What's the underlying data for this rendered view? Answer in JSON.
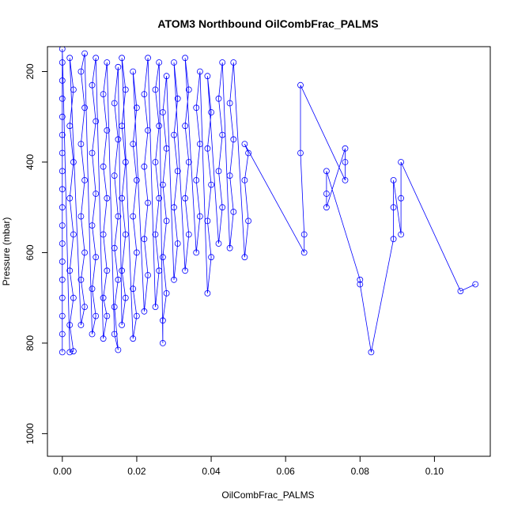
{
  "chart_data": {
    "type": "scatter",
    "title": "ATOM3 Northbound OilCombFrac_PALMS",
    "xlabel": "OilCombFrac_PALMS",
    "ylabel": "Pressure (mbar)",
    "xlim": [
      -0.004,
      0.115
    ],
    "ylim": [
      1050,
      145
    ],
    "y_reversed": true,
    "x_ticks": [
      0.0,
      0.02,
      0.04,
      0.06,
      0.08,
      0.1
    ],
    "x_tick_labels": [
      "0.00",
      "0.02",
      "0.04",
      "0.06",
      "0.08",
      "0.10"
    ],
    "y_ticks": [
      200,
      400,
      600,
      800,
      1000
    ],
    "y_tick_labels": [
      "200",
      "400",
      "600",
      "800",
      "1000"
    ],
    "marker": "open-circle",
    "lines": true,
    "grid": false,
    "legend": "none",
    "colors": {
      "series": "#0000ff",
      "axis": "#000000",
      "background": "#ffffff"
    },
    "series": [
      {
        "points": [
          [
            0.0,
            820
          ],
          [
            0.0,
            780
          ],
          [
            0.0,
            740
          ],
          [
            0.0,
            700
          ],
          [
            0.0,
            660
          ],
          [
            0.0,
            620
          ],
          [
            0.0,
            580
          ],
          [
            0.0,
            540
          ],
          [
            0.0,
            500
          ],
          [
            0.0,
            460
          ],
          [
            0.0,
            420
          ],
          [
            0.0,
            380
          ],
          [
            0.0,
            340
          ],
          [
            0.0,
            300
          ],
          [
            0.0,
            260
          ],
          [
            0.0,
            220
          ],
          [
            0.0,
            180
          ],
          [
            0.0,
            150
          ],
          [
            0.002,
            820
          ],
          [
            0.003,
            818
          ],
          [
            0.002,
            760
          ],
          [
            0.003,
            700
          ],
          [
            0.002,
            640
          ],
          [
            0.003,
            560
          ],
          [
            0.002,
            480
          ],
          [
            0.003,
            400
          ],
          [
            0.002,
            320
          ],
          [
            0.003,
            240
          ],
          [
            0.002,
            170
          ],
          [
            0.005,
            760
          ],
          [
            0.006,
            720
          ],
          [
            0.005,
            660
          ],
          [
            0.006,
            600
          ],
          [
            0.005,
            520
          ],
          [
            0.006,
            440
          ],
          [
            0.005,
            360
          ],
          [
            0.006,
            280
          ],
          [
            0.005,
            200
          ],
          [
            0.006,
            160
          ],
          [
            0.008,
            780
          ],
          [
            0.009,
            740
          ],
          [
            0.008,
            680
          ],
          [
            0.009,
            610
          ],
          [
            0.008,
            540
          ],
          [
            0.009,
            470
          ],
          [
            0.008,
            380
          ],
          [
            0.009,
            310
          ],
          [
            0.008,
            230
          ],
          [
            0.009,
            170
          ],
          [
            0.011,
            790
          ],
          [
            0.012,
            740
          ],
          [
            0.011,
            700
          ],
          [
            0.012,
            640
          ],
          [
            0.011,
            560
          ],
          [
            0.012,
            480
          ],
          [
            0.011,
            410
          ],
          [
            0.012,
            330
          ],
          [
            0.011,
            250
          ],
          [
            0.012,
            180
          ],
          [
            0.014,
            780
          ],
          [
            0.015,
            815
          ],
          [
            0.014,
            720
          ],
          [
            0.015,
            660
          ],
          [
            0.014,
            590
          ],
          [
            0.015,
            520
          ],
          [
            0.014,
            430
          ],
          [
            0.015,
            350
          ],
          [
            0.014,
            270
          ],
          [
            0.015,
            190
          ],
          [
            0.016,
            760
          ],
          [
            0.017,
            700
          ],
          [
            0.016,
            640
          ],
          [
            0.017,
            560
          ],
          [
            0.016,
            480
          ],
          [
            0.017,
            400
          ],
          [
            0.016,
            320
          ],
          [
            0.017,
            240
          ],
          [
            0.016,
            170
          ],
          [
            0.019,
            790
          ],
          [
            0.02,
            740
          ],
          [
            0.019,
            680
          ],
          [
            0.02,
            600
          ],
          [
            0.019,
            520
          ],
          [
            0.02,
            440
          ],
          [
            0.019,
            360
          ],
          [
            0.02,
            280
          ],
          [
            0.019,
            200
          ],
          [
            0.022,
            730
          ],
          [
            0.023,
            650
          ],
          [
            0.022,
            570
          ],
          [
            0.023,
            490
          ],
          [
            0.022,
            410
          ],
          [
            0.023,
            330
          ],
          [
            0.022,
            250
          ],
          [
            0.023,
            170
          ],
          [
            0.025,
            720
          ],
          [
            0.026,
            640
          ],
          [
            0.025,
            560
          ],
          [
            0.026,
            480
          ],
          [
            0.025,
            400
          ],
          [
            0.026,
            320
          ],
          [
            0.025,
            240
          ],
          [
            0.026,
            180
          ],
          [
            0.027,
            800
          ],
          [
            0.027,
            750
          ],
          [
            0.028,
            690
          ],
          [
            0.027,
            610
          ],
          [
            0.028,
            530
          ],
          [
            0.027,
            450
          ],
          [
            0.028,
            370
          ],
          [
            0.027,
            290
          ],
          [
            0.028,
            210
          ],
          [
            0.03,
            660
          ],
          [
            0.031,
            580
          ],
          [
            0.03,
            500
          ],
          [
            0.031,
            420
          ],
          [
            0.03,
            340
          ],
          [
            0.031,
            260
          ],
          [
            0.03,
            180
          ],
          [
            0.033,
            640
          ],
          [
            0.034,
            560
          ],
          [
            0.033,
            480
          ],
          [
            0.034,
            400
          ],
          [
            0.033,
            320
          ],
          [
            0.034,
            240
          ],
          [
            0.033,
            170
          ],
          [
            0.036,
            600
          ],
          [
            0.037,
            520
          ],
          [
            0.036,
            440
          ],
          [
            0.037,
            360
          ],
          [
            0.036,
            280
          ],
          [
            0.037,
            200
          ],
          [
            0.039,
            690
          ],
          [
            0.04,
            610
          ],
          [
            0.039,
            530
          ],
          [
            0.04,
            450
          ],
          [
            0.039,
            370
          ],
          [
            0.04,
            290
          ],
          [
            0.039,
            210
          ],
          [
            0.042,
            580
          ],
          [
            0.043,
            500
          ],
          [
            0.042,
            420
          ],
          [
            0.043,
            340
          ],
          [
            0.042,
            260
          ],
          [
            0.043,
            180
          ],
          [
            0.045,
            590
          ],
          [
            0.046,
            510
          ],
          [
            0.045,
            430
          ],
          [
            0.046,
            350
          ],
          [
            0.045,
            270
          ],
          [
            0.046,
            180
          ],
          [
            0.049,
            610
          ],
          [
            0.05,
            530
          ],
          [
            0.049,
            440
          ],
          [
            0.05,
            380
          ],
          [
            0.049,
            360
          ],
          [
            0.065,
            600
          ],
          [
            0.065,
            560
          ],
          [
            0.064,
            380
          ],
          [
            0.064,
            230
          ],
          [
            0.076,
            440
          ],
          [
            0.076,
            400
          ],
          [
            0.076,
            370
          ],
          [
            0.071,
            500
          ],
          [
            0.071,
            470
          ],
          [
            0.071,
            420
          ],
          [
            0.08,
            660
          ],
          [
            0.08,
            670
          ],
          [
            0.083,
            820
          ],
          [
            0.089,
            570
          ],
          [
            0.089,
            500
          ],
          [
            0.089,
            440
          ],
          [
            0.091,
            560
          ],
          [
            0.091,
            480
          ],
          [
            0.091,
            400
          ],
          [
            0.107,
            685
          ],
          [
            0.111,
            670
          ]
        ]
      }
    ]
  }
}
